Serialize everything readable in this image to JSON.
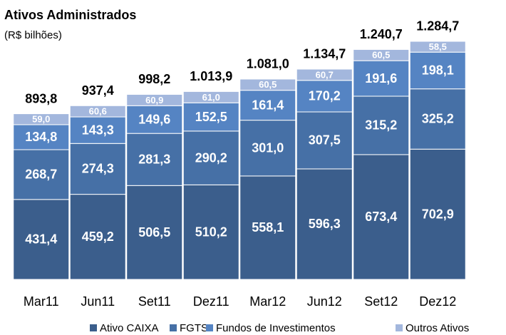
{
  "chart_data": {
    "type": "stacked_bar",
    "title": "Ativos Administrados",
    "subtitle": "(R$ bilhões)",
    "categories": [
      "Mar11",
      "Jun11",
      "Set11",
      "Dez11",
      "Mar12",
      "Jun12",
      "Set12",
      "Dez12"
    ],
    "series": [
      {
        "name": "Ativo CAIXA",
        "color": "#3b5e8c",
        "values": [
          431.4,
          459.2,
          506.5,
          510.2,
          558.1,
          596.3,
          673.4,
          702.9
        ],
        "value_labels": [
          "431,4",
          "459,2",
          "506,5",
          "510,2",
          "558,1",
          "596,3",
          "673,4",
          "702,9"
        ]
      },
      {
        "name": "FGTS",
        "color": "#4670a6",
        "values": [
          268.7,
          274.3,
          281.3,
          290.2,
          301.0,
          307.5,
          315.2,
          325.2
        ],
        "value_labels": [
          "268,7",
          "274,3",
          "281,3",
          "290,2",
          "301,0",
          "307,5",
          "315,2",
          "325,2"
        ]
      },
      {
        "name": "Fundos de Investimentos",
        "color": "#5584c3",
        "values": [
          134.8,
          143.3,
          149.6,
          152.5,
          161.4,
          170.2,
          191.6,
          198.1
        ],
        "value_labels": [
          "134,8",
          "143,3",
          "149,6",
          "152,5",
          "161,4",
          "170,2",
          "191,6",
          "198,1"
        ]
      },
      {
        "name": "Outros Ativos",
        "color": "#a3b7dd",
        "values": [
          59.0,
          60.6,
          60.9,
          61.0,
          60.5,
          60.7,
          60.5,
          58.5
        ],
        "value_labels": [
          "59,0",
          "60,6",
          "60,9",
          "61,0",
          "60,5",
          "60,7",
          "60,5",
          "58,5"
        ]
      }
    ],
    "totals": [
      893.8,
      937.4,
      998.2,
      1013.9,
      1081.0,
      1134.7,
      1240.7,
      1284.7
    ],
    "total_labels": [
      "893,8",
      "937,4",
      "998,2",
      "1.013,9",
      "1.081,0",
      "1.134,7",
      "1.240,7",
      "1.284,7"
    ]
  }
}
